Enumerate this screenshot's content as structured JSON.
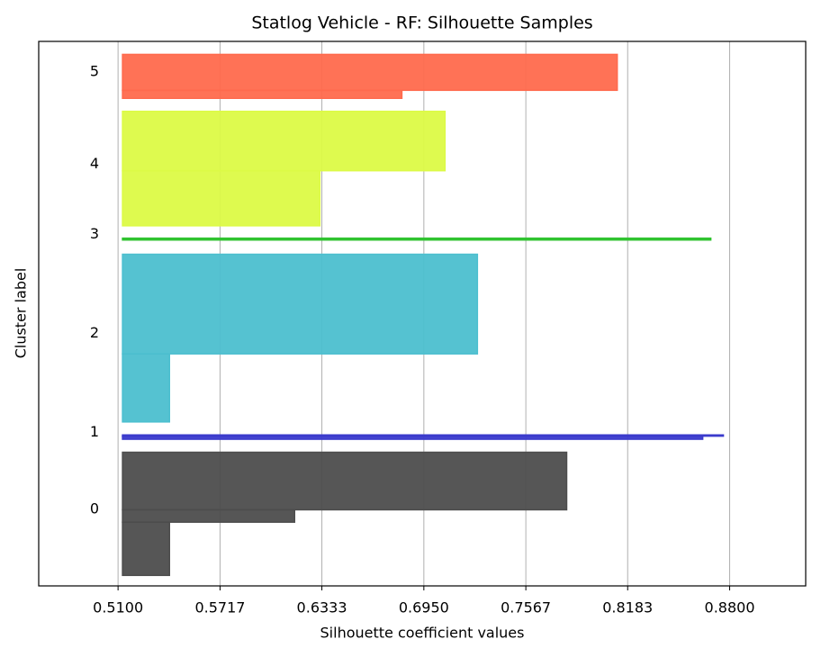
{
  "chart_data": {
    "type": "silhouette",
    "title": "Statlog Vehicle - RF: Silhouette Samples",
    "x_label": "Silhouette coefficient values",
    "y_label": "Cluster label",
    "xlim": [
      0.462,
      0.926
    ],
    "ylim": [
      0,
      880
    ],
    "xticks": [
      {
        "value": 0.51,
        "label": "0.5100"
      },
      {
        "value": 0.5717,
        "label": "0.5717"
      },
      {
        "value": 0.6333,
        "label": "0.6333"
      },
      {
        "value": 0.695,
        "label": "0.6950"
      },
      {
        "value": 0.7567,
        "label": "0.7567"
      },
      {
        "value": 0.8183,
        "label": "0.8183"
      },
      {
        "value": 0.88,
        "label": "0.8800"
      }
    ],
    "x_base": 0.5127,
    "grid": true,
    "series": [
      {
        "name": "0",
        "color": "#4d4d4d",
        "start": 17,
        "sizes": [
          86,
          20,
          93
        ],
        "values": [
          0.5411,
          0.6168,
          0.7814
        ]
      },
      {
        "name": "1",
        "color": "#3b3bcc",
        "start": 237,
        "sizes": [
          5,
          2
        ],
        "values": [
          0.8637,
          0.8762
        ]
      },
      {
        "name": "2",
        "color": "#4cbfcf",
        "start": 265,
        "sizes": [
          110,
          161
        ],
        "values": [
          0.5411,
          0.7274
        ]
      },
      {
        "name": "3",
        "color": "#2ec22e",
        "start": 559,
        "sizes": [
          3
        ],
        "values": [
          0.8686
        ]
      },
      {
        "name": "4",
        "color": "#dcfa46",
        "start": 582,
        "sizes": [
          89,
          96
        ],
        "values": [
          0.6321,
          0.7078
        ]
      },
      {
        "name": "5",
        "color": "#ff6a4d",
        "start": 788,
        "sizes": [
          13,
          58
        ],
        "values": [
          0.6817,
          0.812
        ]
      }
    ]
  }
}
